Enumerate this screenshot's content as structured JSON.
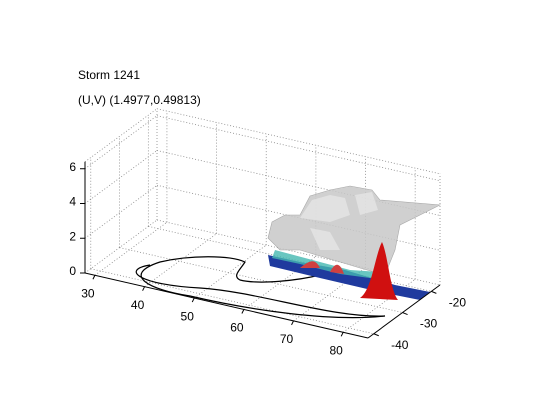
{
  "chart_data": {
    "type": "surface3d",
    "title": "Storm 1241",
    "subtitle": "(U,V) (1.4977,0.49813)",
    "xlim": [
      28,
      85
    ],
    "ylim": [
      -42,
      -17
    ],
    "zlim": [
      0,
      6.4
    ],
    "xticks": [
      30,
      40,
      50,
      60,
      70,
      80
    ],
    "yticks": [
      -40,
      -30,
      -20
    ],
    "zticks": [
      0,
      2,
      4,
      6
    ],
    "grid": true
  }
}
